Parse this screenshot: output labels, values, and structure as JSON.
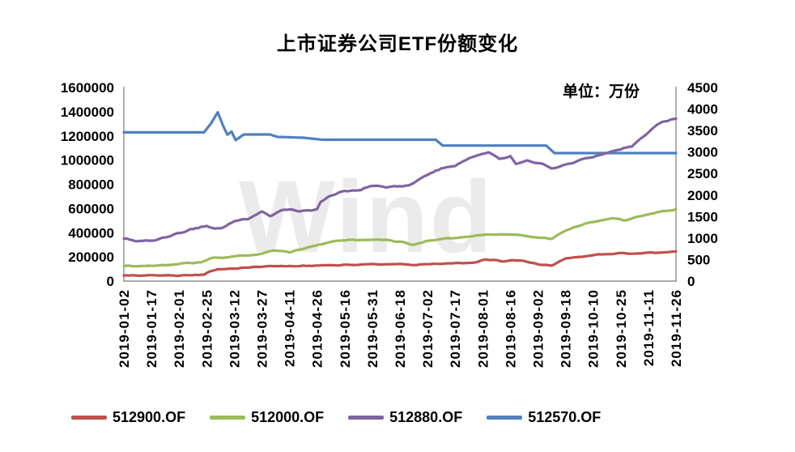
{
  "title": "上市证券公司ETF份额变化",
  "unit_label": "单位：万份",
  "watermark": "Wind",
  "chart_data": {
    "type": "line",
    "title": "上市证券公司ETF份额变化",
    "unit_label": "单位：万份",
    "grid": false,
    "legend_position": "bottom",
    "x_note": "x values are tick indices 0-20 mapping to x_tick_labels",
    "x_tick_labels": [
      "2019-01-02",
      "2019-01-17",
      "2019-02-01",
      "2019-02-25",
      "2019-03-12",
      "2019-03-27",
      "2019-04-11",
      "2019-04-26",
      "2019-05-16",
      "2019-05-31",
      "2019-06-18",
      "2019-07-02",
      "2019-07-17",
      "2019-08-01",
      "2019-08-16",
      "2019-09-02",
      "2019-09-18",
      "2019-10-10",
      "2019-10-25",
      "2019-11-11",
      "2019-11-26"
    ],
    "y_left": {
      "min": 0,
      "max": 1600000,
      "tick_step": 200000,
      "ticks": [
        "1600000",
        "1400000",
        "1200000",
        "1000000",
        "800000",
        "600000",
        "400000",
        "200000",
        "0"
      ]
    },
    "y_right": {
      "min": 0,
      "max": 4500,
      "tick_step": 500,
      "ticks": [
        "4500",
        "4000",
        "3500",
        "3000",
        "2500",
        "2000",
        "1500",
        "1000",
        "500",
        "0"
      ]
    },
    "series": [
      {
        "name": "512570.OF",
        "color": "#4F81BD",
        "values_axis": "left",
        "points": [
          [
            0,
            1229000
          ],
          [
            2.9,
            1229000
          ],
          [
            3.15,
            1300000
          ],
          [
            3.4,
            1395000
          ],
          [
            3.6,
            1280000
          ],
          [
            3.75,
            1210000
          ],
          [
            3.9,
            1235000
          ],
          [
            4.05,
            1165000
          ],
          [
            4.35,
            1212000
          ],
          [
            5.3,
            1212000
          ],
          [
            5.55,
            1192000
          ],
          [
            6.5,
            1185000
          ],
          [
            7.2,
            1168000
          ],
          [
            11.3,
            1168000
          ],
          [
            11.55,
            1120000
          ],
          [
            15.3,
            1120000
          ],
          [
            15.6,
            1058000
          ],
          [
            20,
            1058000
          ]
        ]
      },
      {
        "name": "512900.OF",
        "color": "#C0504D",
        "values_axis": "left",
        "points": [
          [
            0,
            47000
          ],
          [
            1,
            47000
          ],
          [
            2,
            48000
          ],
          [
            2.9,
            52000
          ],
          [
            3.1,
            78000
          ],
          [
            3.4,
            96000
          ],
          [
            3.7,
            101000
          ],
          [
            4,
            104000
          ],
          [
            4.8,
            118000
          ],
          [
            5,
            122000
          ],
          [
            6,
            124000
          ],
          [
            7,
            128000
          ],
          [
            8,
            133000
          ],
          [
            9,
            139000
          ],
          [
            9.6,
            141000
          ],
          [
            10,
            139000
          ],
          [
            10.5,
            134000
          ],
          [
            11,
            142000
          ],
          [
            12,
            149000
          ],
          [
            12.8,
            155000
          ],
          [
            13.1,
            178000
          ],
          [
            13.4,
            172000
          ],
          [
            13.7,
            160000
          ],
          [
            14,
            168000
          ],
          [
            14.4,
            168000
          ],
          [
            15,
            138000
          ],
          [
            15.5,
            128000
          ],
          [
            16,
            185000
          ],
          [
            16.5,
            201000
          ],
          [
            17,
            215000
          ],
          [
            17.5,
            223000
          ],
          [
            18,
            230000
          ],
          [
            18.3,
            226000
          ],
          [
            18.7,
            230000
          ],
          [
            19,
            236000
          ],
          [
            19.5,
            240000
          ],
          [
            20,
            245000
          ]
        ]
      },
      {
        "name": "512000.OF",
        "color": "#9BBB59",
        "values_axis": "left",
        "points": [
          [
            0,
            122000
          ],
          [
            0.5,
            125000
          ],
          [
            1,
            128000
          ],
          [
            1.5,
            135000
          ],
          [
            2,
            142000
          ],
          [
            2.8,
            155000
          ],
          [
            3.2,
            189000
          ],
          [
            4,
            203000
          ],
          [
            4.6,
            216000
          ],
          [
            5,
            228000
          ],
          [
            5.5,
            255000
          ],
          [
            6,
            243000
          ],
          [
            6.5,
            268000
          ],
          [
            7,
            300000
          ],
          [
            7.6,
            331000
          ],
          [
            8,
            338000
          ],
          [
            8.5,
            342000
          ],
          [
            9,
            344000
          ],
          [
            9.5,
            340000
          ],
          [
            10,
            324000
          ],
          [
            10.5,
            306000
          ],
          [
            11,
            331000
          ],
          [
            11.5,
            345000
          ],
          [
            12,
            358000
          ],
          [
            12.5,
            368000
          ],
          [
            13,
            378000
          ],
          [
            13.5,
            383000
          ],
          [
            14,
            385000
          ],
          [
            14.4,
            378000
          ],
          [
            15,
            358000
          ],
          [
            15.5,
            352000
          ],
          [
            15.8,
            395000
          ],
          [
            16,
            420000
          ],
          [
            16.4,
            450000
          ],
          [
            16.7,
            473000
          ],
          [
            17.2,
            500000
          ],
          [
            17.7,
            520000
          ],
          [
            18.1,
            505000
          ],
          [
            18.4,
            520000
          ],
          [
            18.8,
            540000
          ],
          [
            19.4,
            570000
          ],
          [
            20,
            595000
          ]
        ]
      },
      {
        "name": "512880.OF",
        "color": "#8064A2",
        "values_axis": "left",
        "points": [
          [
            0,
            351000
          ],
          [
            0.5,
            335000
          ],
          [
            1,
            331000
          ],
          [
            1.5,
            355000
          ],
          [
            2,
            392000
          ],
          [
            2.5,
            428000
          ],
          [
            3,
            460000
          ],
          [
            3.3,
            430000
          ],
          [
            3.6,
            445000
          ],
          [
            4,
            493000
          ],
          [
            4.5,
            508000
          ],
          [
            5,
            575000
          ],
          [
            5.3,
            540000
          ],
          [
            5.8,
            594000
          ],
          [
            6.4,
            585000
          ],
          [
            7,
            592000
          ],
          [
            7.15,
            660000
          ],
          [
            7.4,
            700000
          ],
          [
            8,
            743000
          ],
          [
            8.6,
            756000
          ],
          [
            9,
            790000
          ],
          [
            9.6,
            780000
          ],
          [
            10,
            776000
          ],
          [
            10.4,
            800000
          ],
          [
            11,
            878000
          ],
          [
            11.5,
            930000
          ],
          [
            12,
            952000
          ],
          [
            12.5,
            1020000
          ],
          [
            13,
            1060000
          ],
          [
            13.2,
            1070000
          ],
          [
            13.6,
            1015000
          ],
          [
            14,
            1035000
          ],
          [
            14.2,
            970000
          ],
          [
            14.6,
            1005000
          ],
          [
            15,
            979000
          ],
          [
            15.5,
            932000
          ],
          [
            16,
            959000
          ],
          [
            16.5,
            1000000
          ],
          [
            17,
            1026000
          ],
          [
            17.5,
            1060000
          ],
          [
            18,
            1087000
          ],
          [
            18.4,
            1114000
          ],
          [
            19,
            1235000
          ],
          [
            19.5,
            1316000
          ],
          [
            20,
            1343000
          ]
        ]
      }
    ],
    "legend_order": [
      "512900.OF",
      "512000.OF",
      "512880.OF",
      "512570.OF"
    ]
  }
}
